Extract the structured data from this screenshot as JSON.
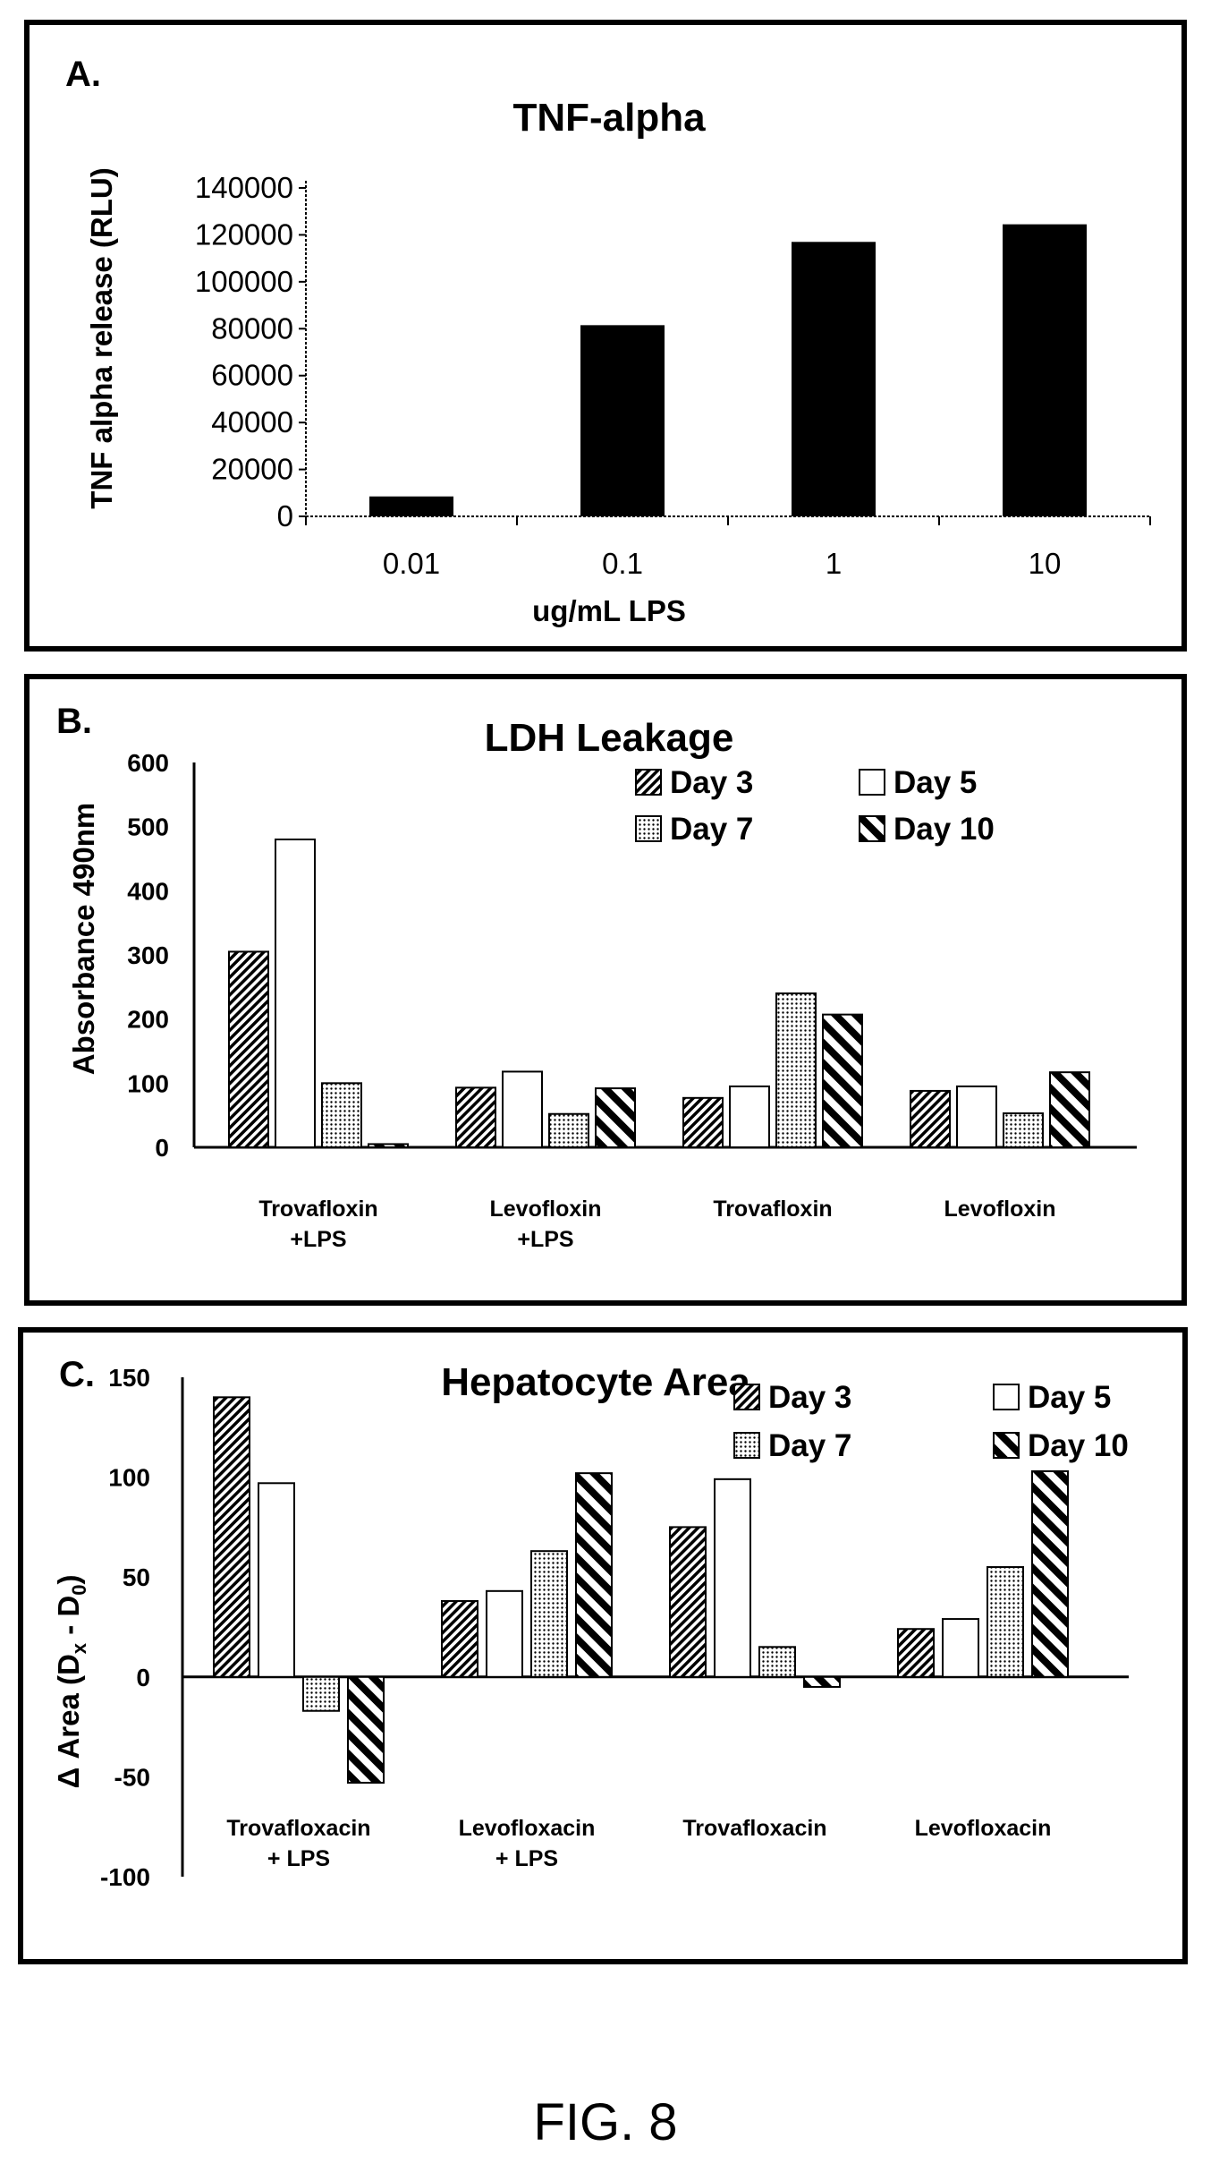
{
  "figure_caption": "FIG. 8",
  "chart_data": [
    {
      "panel_label": "A.",
      "type": "bar",
      "title": "TNF-alpha",
      "xlabel": "ug/mL LPS",
      "ylabel": "TNF alpha release (RLU)",
      "categories": [
        "0.01",
        "0.1",
        "1",
        "10"
      ],
      "values": [
        8500,
        81500,
        117000,
        124500
      ],
      "yticks": [
        "0",
        "20000",
        "40000",
        "60000",
        "80000",
        "100000",
        "120000",
        "140000"
      ],
      "ylim": [
        0,
        140000
      ],
      "bar_color": "#000000",
      "legend": "none",
      "grid": false
    },
    {
      "panel_label": "B.",
      "type": "bar",
      "title": "LDH Leakage",
      "xlabel": "",
      "ylabel": "Absorbance 490nm",
      "categories": [
        [
          "Trovafloxin",
          "+LPS"
        ],
        [
          "Levofloxin",
          "+LPS"
        ],
        [
          "Trovafloxin"
        ],
        [
          "Levofloxin"
        ]
      ],
      "series": [
        {
          "name": "Day 3",
          "pattern": "dense-diagonal",
          "values": [
            305,
            93,
            77,
            88
          ]
        },
        {
          "name": "Day 5",
          "pattern": "white",
          "values": [
            480,
            118,
            95,
            95
          ]
        },
        {
          "name": "Day 7",
          "pattern": "dots",
          "values": [
            100,
            52,
            240,
            53
          ]
        },
        {
          "name": "Day 10",
          "pattern": "wide-diagonal",
          "values": [
            5,
            92,
            207,
            117
          ]
        }
      ],
      "yticks": [
        "0",
        "100",
        "200",
        "300",
        "400",
        "500",
        "600"
      ],
      "ylim": [
        0,
        600
      ],
      "legend": "top-right",
      "grid": false
    },
    {
      "panel_label": "C.",
      "type": "bar",
      "title": "Hepatocyte Area",
      "xlabel": "",
      "ylabel": "Δ Area (D",
      "ylabel_sub1": "x",
      "ylabel_mid": " - D",
      "ylabel_sub2": "0",
      "ylabel_end": ")",
      "categories": [
        [
          "Trovafloxacin",
          "+ LPS"
        ],
        [
          "Levofloxacin",
          "+ LPS"
        ],
        [
          "Trovafloxacin"
        ],
        [
          "Levofloxacin"
        ]
      ],
      "series": [
        {
          "name": "Day 3",
          "pattern": "dense-diagonal",
          "values": [
            140,
            38,
            75,
            24
          ]
        },
        {
          "name": "Day 5",
          "pattern": "white",
          "values": [
            97,
            43,
            99,
            29
          ]
        },
        {
          "name": "Day 7",
          "pattern": "dots",
          "values": [
            -17,
            63,
            15,
            55
          ]
        },
        {
          "name": "Day 10",
          "pattern": "wide-diagonal",
          "values": [
            -53,
            102,
            -5,
            103
          ]
        }
      ],
      "yticks": [
        "-100",
        "-50",
        "0",
        "50",
        "100",
        "150"
      ],
      "ylim": [
        -100,
        150
      ],
      "legend": "top-right",
      "grid": false
    }
  ]
}
